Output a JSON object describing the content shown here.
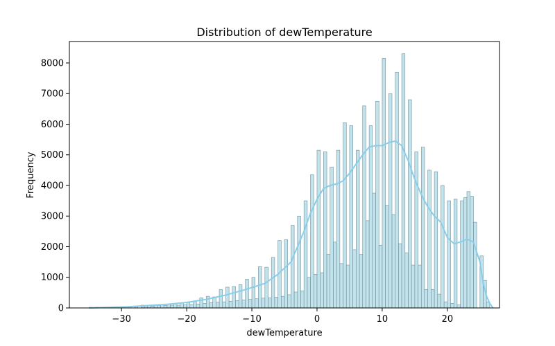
{
  "chart_data": {
    "type": "bar",
    "subtype": "histogram-with-kde",
    "title": "Distribution of dewTemperature",
    "xlabel": "dewTemperature",
    "ylabel": "Frequency",
    "xlim": [
      -38,
      28
    ],
    "ylim": [
      0,
      8700
    ],
    "xticks": [
      -30,
      -20,
      -10,
      0,
      10,
      20
    ],
    "yticks": [
      0,
      1000,
      2000,
      3000,
      4000,
      5000,
      6000,
      7000,
      8000
    ],
    "grid": false,
    "colors": {
      "bar_fill": "#add8e6",
      "bar_edge": "#6f8f99",
      "kde_line": "#87ceeb",
      "axis": "#000000"
    },
    "bin_edges_start": -35,
    "bin_width": 0.5,
    "bins": [
      {
        "x": -35.0,
        "count": 20
      },
      {
        "x": -34.0,
        "count": 25
      },
      {
        "x": -33.0,
        "count": 25
      },
      {
        "x": -32.0,
        "count": 25
      },
      {
        "x": -31.0,
        "count": 30
      },
      {
        "x": -30.0,
        "count": 30
      },
      {
        "x": -29.0,
        "count": 30
      },
      {
        "x": -28.0,
        "count": 50
      },
      {
        "x": -27.0,
        "count": 90
      },
      {
        "x": -26.5,
        "count": 60
      },
      {
        "x": -26.0,
        "count": 90
      },
      {
        "x": -25.5,
        "count": 60
      },
      {
        "x": -25.0,
        "count": 100
      },
      {
        "x": -24.5,
        "count": 80
      },
      {
        "x": -24.0,
        "count": 100
      },
      {
        "x": -23.5,
        "count": 80
      },
      {
        "x": -23.0,
        "count": 130
      },
      {
        "x": -22.5,
        "count": 90
      },
      {
        "x": -22.0,
        "count": 130
      },
      {
        "x": -21.5,
        "count": 90
      },
      {
        "x": -21.0,
        "count": 170
      },
      {
        "x": -20.5,
        "count": 100
      },
      {
        "x": -20.0,
        "count": 180
      },
      {
        "x": -19.5,
        "count": 110
      },
      {
        "x": -19.0,
        "count": 210
      },
      {
        "x": -18.5,
        "count": 130
      },
      {
        "x": -18.0,
        "count": 330
      },
      {
        "x": -17.5,
        "count": 150
      },
      {
        "x": -17.0,
        "count": 380
      },
      {
        "x": -16.5,
        "count": 170
      },
      {
        "x": -16.0,
        "count": 360
      },
      {
        "x": -15.5,
        "count": 190
      },
      {
        "x": -15.0,
        "count": 600
      },
      {
        "x": -14.5,
        "count": 200
      },
      {
        "x": -14.0,
        "count": 680
      },
      {
        "x": -13.5,
        "count": 220
      },
      {
        "x": -13.0,
        "count": 700
      },
      {
        "x": -12.5,
        "count": 240
      },
      {
        "x": -12.0,
        "count": 760
      },
      {
        "x": -11.5,
        "count": 260
      },
      {
        "x": -11.0,
        "count": 940
      },
      {
        "x": -10.5,
        "count": 280
      },
      {
        "x": -10.0,
        "count": 1000
      },
      {
        "x": -9.5,
        "count": 300
      },
      {
        "x": -9.0,
        "count": 1350
      },
      {
        "x": -8.5,
        "count": 320
      },
      {
        "x": -8.0,
        "count": 1330
      },
      {
        "x": -7.5,
        "count": 330
      },
      {
        "x": -7.0,
        "count": 1650
      },
      {
        "x": -6.5,
        "count": 350
      },
      {
        "x": -6.0,
        "count": 2200
      },
      {
        "x": -5.5,
        "count": 380
      },
      {
        "x": -5.0,
        "count": 2230
      },
      {
        "x": -4.5,
        "count": 430
      },
      {
        "x": -4.0,
        "count": 2700
      },
      {
        "x": -3.5,
        "count": 520
      },
      {
        "x": -3.0,
        "count": 3000
      },
      {
        "x": -2.5,
        "count": 560
      },
      {
        "x": -2.0,
        "count": 3500
      },
      {
        "x": -1.5,
        "count": 1000
      },
      {
        "x": -1.0,
        "count": 4350
      },
      {
        "x": -0.5,
        "count": 1100
      },
      {
        "x": 0.0,
        "count": 5150
      },
      {
        "x": 0.5,
        "count": 1150
      },
      {
        "x": 1.0,
        "count": 5100
      },
      {
        "x": 1.5,
        "count": 1750
      },
      {
        "x": 2.0,
        "count": 4600
      },
      {
        "x": 2.5,
        "count": 2150
      },
      {
        "x": 3.0,
        "count": 5150
      },
      {
        "x": 3.5,
        "count": 1450
      },
      {
        "x": 4.0,
        "count": 6050
      },
      {
        "x": 4.5,
        "count": 1400
      },
      {
        "x": 5.0,
        "count": 5950
      },
      {
        "x": 5.5,
        "count": 1900
      },
      {
        "x": 6.0,
        "count": 5150
      },
      {
        "x": 6.5,
        "count": 1750
      },
      {
        "x": 7.0,
        "count": 6600
      },
      {
        "x": 7.5,
        "count": 2850
      },
      {
        "x": 8.0,
        "count": 5950
      },
      {
        "x": 8.5,
        "count": 3750
      },
      {
        "x": 9.0,
        "count": 6750
      },
      {
        "x": 9.5,
        "count": 2050
      },
      {
        "x": 10.0,
        "count": 8150
      },
      {
        "x": 10.5,
        "count": 3350
      },
      {
        "x": 11.0,
        "count": 7000
      },
      {
        "x": 11.5,
        "count": 3050
      },
      {
        "x": 12.0,
        "count": 7700
      },
      {
        "x": 12.5,
        "count": 2100
      },
      {
        "x": 13.0,
        "count": 8300
      },
      {
        "x": 13.5,
        "count": 1800
      },
      {
        "x": 14.0,
        "count": 6800
      },
      {
        "x": 14.5,
        "count": 1400
      },
      {
        "x": 15.0,
        "count": 5100
      },
      {
        "x": 15.5,
        "count": 1400
      },
      {
        "x": 16.0,
        "count": 5250
      },
      {
        "x": 16.5,
        "count": 600
      },
      {
        "x": 17.0,
        "count": 4500
      },
      {
        "x": 17.5,
        "count": 600
      },
      {
        "x": 18.0,
        "count": 4450
      },
      {
        "x": 18.5,
        "count": 450
      },
      {
        "x": 19.0,
        "count": 4000
      },
      {
        "x": 19.5,
        "count": 200
      },
      {
        "x": 20.0,
        "count": 3500
      },
      {
        "x": 20.5,
        "count": 150
      },
      {
        "x": 21.0,
        "count": 3550
      },
      {
        "x": 21.5,
        "count": 100
      },
      {
        "x": 22.0,
        "count": 3500
      },
      {
        "x": 22.5,
        "count": 3600
      },
      {
        "x": 23.0,
        "count": 3800
      },
      {
        "x": 23.5,
        "count": 3650
      },
      {
        "x": 24.0,
        "count": 2800
      },
      {
        "x": 25.0,
        "count": 1700
      },
      {
        "x": 25.5,
        "count": 900
      },
      {
        "x": 26.0,
        "count": 200
      }
    ],
    "kde": {
      "x": [
        -35,
        -32,
        -29,
        -26,
        -23,
        -20,
        -17,
        -14,
        -11,
        -8,
        -6,
        -4,
        -2,
        -1,
        0,
        1,
        2,
        3,
        4,
        5,
        6,
        7,
        8,
        9,
        10,
        11,
        12,
        13,
        14,
        15,
        16,
        17,
        18,
        19,
        20,
        21,
        22,
        23,
        24,
        25,
        25.5,
        26,
        26.5,
        27
      ],
      "y": [
        0,
        20,
        40,
        80,
        120,
        180,
        280,
        420,
        600,
        800,
        1100,
        1500,
        2500,
        3100,
        3550,
        3900,
        4000,
        4050,
        4150,
        4400,
        4700,
        5000,
        5250,
        5300,
        5300,
        5400,
        5450,
        5300,
        4800,
        4200,
        3700,
        3300,
        3000,
        2800,
        2300,
        2100,
        2150,
        2250,
        2150,
        1500,
        800,
        400,
        150,
        0
      ]
    }
  }
}
